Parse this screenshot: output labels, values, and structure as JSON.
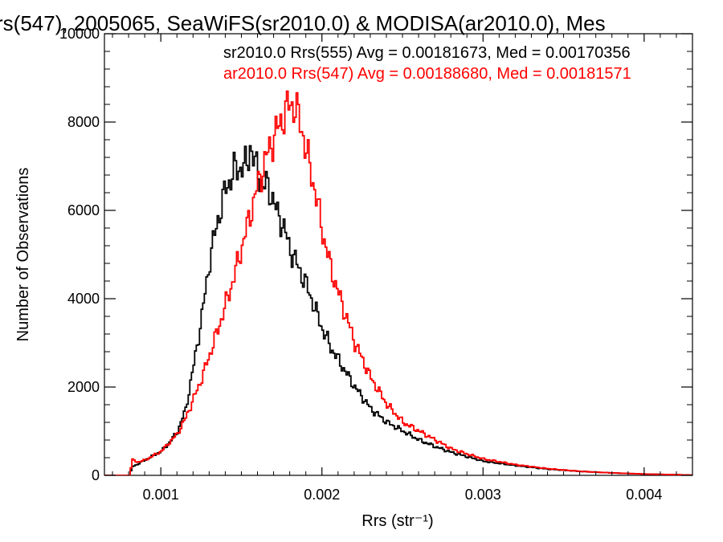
{
  "chart_data": {
    "type": "line",
    "title": "rs(547), 2005065, SeaWiFS(sr2010.0) & MODISA(ar2010.0), Mes",
    "xlabel": "Rrs (str⁻¹)",
    "ylabel": "Number of Observations",
    "xlim": [
      0.00065,
      0.0043
    ],
    "ylim": [
      0,
      10000
    ],
    "x_ticks": [
      0.001,
      0.002,
      0.003,
      0.004
    ],
    "x_tick_labels": [
      "0.001",
      "0.002",
      "0.003",
      "0.004"
    ],
    "y_ticks": [
      0,
      2000,
      4000,
      6000,
      8000,
      10000
    ],
    "y_tick_labels": [
      "0",
      "2000",
      "4000",
      "6000",
      "8000",
      "10000"
    ],
    "grid": false,
    "legend_position": "top-right",
    "series": [
      {
        "name": "sr2010.0 Rrs(555) Avg = 0.00181673, Med = 0.00170356",
        "color": "#000000",
        "x": [
          0.00065,
          0.0008,
          0.00082,
          0.00085,
          0.0009,
          0.00095,
          0.001,
          0.00105,
          0.0011,
          0.00115,
          0.0012,
          0.00125,
          0.0013,
          0.00135,
          0.0014,
          0.00145,
          0.0015,
          0.00153,
          0.00155,
          0.00158,
          0.0016,
          0.00163,
          0.00165,
          0.00168,
          0.0017,
          0.00175,
          0.0018,
          0.00185,
          0.0019,
          0.00195,
          0.002,
          0.00205,
          0.0021,
          0.0022,
          0.0023,
          0.0024,
          0.0025,
          0.0026,
          0.0027,
          0.0028,
          0.0029,
          0.003,
          0.0032,
          0.0034,
          0.0036,
          0.0038,
          0.004,
          0.0042,
          0.0043
        ],
        "y": [
          0,
          0,
          200,
          250,
          350,
          450,
          550,
          750,
          1000,
          1500,
          2500,
          3600,
          4900,
          5800,
          6500,
          6900,
          7000,
          7000,
          7500,
          7000,
          6900,
          6500,
          6600,
          6400,
          6100,
          5700,
          5100,
          4700,
          4300,
          3800,
          3300,
          2900,
          2600,
          2000,
          1500,
          1200,
          1000,
          800,
          650,
          520,
          420,
          320,
          220,
          140,
          90,
          55,
          30,
          15,
          5
        ]
      },
      {
        "name": "ar2010.0 Rrs(547) Avg = 0.00188680, Med = 0.00181571",
        "color": "#ff0000",
        "x": [
          0.00065,
          0.0008,
          0.00082,
          0.00085,
          0.0009,
          0.00095,
          0.001,
          0.00105,
          0.0011,
          0.00115,
          0.0012,
          0.00125,
          0.0013,
          0.00135,
          0.0014,
          0.00145,
          0.0015,
          0.00155,
          0.0016,
          0.00165,
          0.0017,
          0.00173,
          0.00175,
          0.00178,
          0.0018,
          0.00183,
          0.00185,
          0.00188,
          0.0019,
          0.00195,
          0.002,
          0.00205,
          0.0021,
          0.0022,
          0.0023,
          0.0024,
          0.0025,
          0.0026,
          0.0027,
          0.0028,
          0.0029,
          0.003,
          0.0032,
          0.0034,
          0.0036,
          0.0038,
          0.004,
          0.0042,
          0.0043
        ],
        "y": [
          0,
          0,
          350,
          300,
          350,
          450,
          550,
          750,
          950,
          1300,
          1750,
          2200,
          2750,
          3300,
          3900,
          4500,
          5200,
          5900,
          6600,
          7200,
          7700,
          7900,
          8100,
          8300,
          8400,
          8350,
          8100,
          7700,
          7300,
          6500,
          5500,
          4700,
          4100,
          3000,
          2200,
          1600,
          1200,
          1000,
          800,
          600,
          480,
          370,
          240,
          150,
          90,
          55,
          30,
          15,
          5
        ]
      }
    ]
  }
}
